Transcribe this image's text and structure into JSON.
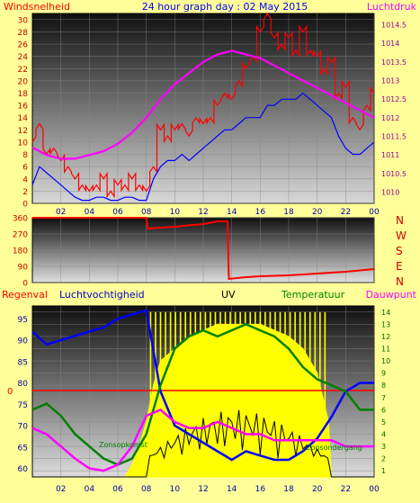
{
  "title": "24 hour graph day : 02 May 2015",
  "colors": {
    "page_bg": "#ffff99",
    "wind": "#ff0000",
    "pressure": "#ff00ff",
    "wind_avg": "#0000ff",
    "direction": "#ff0000",
    "humidity": "#0000cc",
    "uv": "#ffff00",
    "temp": "#008000",
    "dewpoint": "#ff00ff",
    "rain": "#ff0000",
    "axis_blue": "#0000aa",
    "compass": "#cc0000"
  },
  "chart_data": [
    {
      "type": "line",
      "panel": "top",
      "label_left": "Windsnelheid",
      "label_right": "Luchtdruk",
      "x_ticks": [
        "02",
        "04",
        "06",
        "08",
        "10",
        "12",
        "14",
        "16",
        "18",
        "20",
        "22",
        "00"
      ],
      "y_left_ticks": [
        "0",
        "2",
        "4",
        "6",
        "8",
        "10",
        "12",
        "14",
        "16",
        "18",
        "20",
        "22",
        "24",
        "26",
        "28",
        "30"
      ],
      "y_left_range": [
        0,
        31
      ],
      "y_right_ticks": [
        "1010",
        "1010.5",
        "1011",
        "1011.5",
        "1012",
        "1012.5",
        "1013",
        "1013.5",
        "1014",
        "1014.5"
      ],
      "y_right_range": [
        1009.7,
        1014.8
      ],
      "series": [
        {
          "role": "gust",
          "axis": "left",
          "x": [
            0,
            0.5,
            1,
            1.5,
            2,
            2.5,
            3,
            3.5,
            4,
            4.5,
            5,
            5.5,
            6,
            6.5,
            7,
            7.5,
            8,
            8.5,
            9,
            9.5,
            10,
            10.5,
            11,
            11.5,
            12,
            12.5,
            13,
            13.5,
            14,
            14.5,
            15,
            15.5,
            16,
            16.5,
            17,
            17.5,
            18,
            18.5,
            19,
            19.5,
            20,
            20.5,
            21,
            21.5,
            22,
            22.5,
            23,
            23.5,
            24
          ],
          "y": [
            10,
            13,
            8,
            9,
            7,
            6,
            4,
            3,
            2,
            3,
            4,
            2,
            3,
            3,
            4,
            3,
            2,
            6,
            12,
            11,
            12,
            13,
            11,
            14,
            13,
            14,
            16,
            18,
            17,
            20,
            22,
            24,
            28,
            31,
            27,
            26,
            27,
            25,
            28,
            25,
            24,
            22,
            23,
            18,
            19,
            14,
            12,
            16,
            18
          ]
        },
        {
          "role": "average",
          "axis": "left",
          "x": [
            0,
            0.5,
            1,
            1.5,
            2,
            2.5,
            3,
            3.5,
            4,
            4.5,
            5,
            5.5,
            6,
            6.5,
            7,
            7.5,
            8,
            8.5,
            9,
            9.5,
            10,
            10.5,
            11,
            11.5,
            12,
            12.5,
            13,
            13.5,
            14,
            14.5,
            15,
            15.5,
            16,
            16.5,
            17,
            17.5,
            18,
            18.5,
            19,
            19.5,
            20,
            20.5,
            21,
            21.5,
            22,
            22.5,
            23,
            23.5,
            24
          ],
          "y": [
            3,
            6,
            5,
            4,
            3,
            2,
            1,
            0.5,
            0.5,
            1,
            1,
            0.5,
            0.5,
            1,
            1,
            0.5,
            0.5,
            4,
            6,
            7,
            7,
            8,
            7,
            8,
            9,
            10,
            11,
            12,
            12,
            13,
            14,
            14,
            14,
            16,
            16,
            17,
            17,
            17,
            18,
            17,
            16,
            15,
            14,
            11,
            9,
            8,
            8,
            9,
            10
          ]
        },
        {
          "role": "pressure",
          "axis": "right",
          "x": [
            0,
            1,
            2,
            3,
            4,
            5,
            6,
            7,
            8,
            9,
            10,
            11,
            12,
            13,
            14,
            15,
            16,
            17,
            18,
            19,
            20,
            21,
            22,
            23,
            24
          ],
          "y": [
            1011.2,
            1011.0,
            1010.9,
            1010.9,
            1011.0,
            1011.1,
            1011.3,
            1011.6,
            1012.0,
            1012.5,
            1012.9,
            1013.2,
            1013.5,
            1013.7,
            1013.8,
            1013.7,
            1013.6,
            1013.4,
            1013.2,
            1013.0,
            1012.8,
            1012.6,
            1012.4,
            1012.2,
            1012.0
          ]
        }
      ]
    },
    {
      "type": "line",
      "panel": "direction",
      "y_left_ticks": [
        "0",
        "90",
        "180",
        "270",
        "360"
      ],
      "y_range": [
        0,
        360
      ],
      "compass": [
        "N",
        "W",
        "S",
        "E",
        "N"
      ],
      "series": [
        {
          "role": "wind_direction",
          "x": [
            0,
            2,
            4,
            6,
            8,
            8.1,
            9,
            10,
            11,
            12,
            13,
            13.7,
            13.8,
            15,
            16,
            18,
            20,
            22,
            24
          ],
          "y": [
            360,
            360,
            360,
            360,
            360,
            300,
            305,
            310,
            318,
            325,
            340,
            340,
            20,
            30,
            35,
            40,
            50,
            60,
            75
          ]
        }
      ]
    },
    {
      "type": "line",
      "panel": "bottom",
      "legend": [
        "Regenval",
        "Luchtvochtigheid",
        "UV",
        "Temperatuur",
        "Dauwpunt"
      ],
      "x_ticks": [
        "02",
        "04",
        "06",
        "08",
        "10",
        "12",
        "14",
        "16",
        "18",
        "20",
        "22",
        "00"
      ],
      "y_left_ticks": [
        "60",
        "65",
        "70",
        "75",
        "80",
        "85",
        "90",
        "95"
      ],
      "y_left_range": [
        58,
        98
      ],
      "rain_tick": "0",
      "y_right_ticks": [
        "1",
        "2",
        "3",
        "4",
        "5",
        "6",
        "7",
        "8",
        "9",
        "10",
        "11",
        "12",
        "13",
        "14"
      ],
      "y_right_range": [
        0.5,
        14.5
      ],
      "temp_ann": "Zonsopkomst",
      "temp_ann2": "Zonsondergang",
      "series": [
        {
          "role": "humidity",
          "axis": "left",
          "x": [
            0,
            1,
            2,
            3,
            4,
            5,
            6,
            7,
            8,
            9,
            10,
            11,
            12,
            13,
            14,
            15,
            16,
            17,
            18,
            19,
            20,
            21,
            22,
            23,
            24
          ],
          "y": [
            92,
            89,
            90,
            91,
            92,
            93,
            95,
            96,
            97,
            78,
            70,
            68,
            66,
            64,
            62,
            64,
            63,
            62,
            62,
            64,
            67,
            72,
            78,
            80,
            80
          ]
        },
        {
          "role": "temperature",
          "axis": "right",
          "x": [
            0,
            1,
            2,
            3,
            4,
            5,
            6,
            7,
            8,
            9,
            10,
            11,
            12,
            13,
            14,
            15,
            16,
            17,
            18,
            19,
            20,
            21,
            22,
            23,
            24
          ],
          "y": [
            6,
            6.5,
            5.5,
            4,
            3,
            2,
            1.5,
            2,
            4,
            8,
            11,
            12,
            12.5,
            12,
            12.5,
            13,
            12.5,
            12,
            11,
            9.5,
            8.5,
            8,
            7.5,
            6,
            6
          ]
        },
        {
          "role": "dewpoint",
          "axis": "right",
          "x": [
            0,
            1,
            2,
            3,
            4,
            5,
            6,
            7,
            8,
            9,
            10,
            11,
            12,
            13,
            14,
            15,
            16,
            17,
            18,
            19,
            20,
            21,
            22,
            23,
            24
          ],
          "y": [
            4.5,
            4,
            3,
            2,
            1.2,
            1,
            1.5,
            3,
            5.5,
            6,
            5,
            4.5,
            4.5,
            5,
            4.5,
            4,
            4,
            3.5,
            3.5,
            3.5,
            3.5,
            3.5,
            3,
            3,
            3
          ]
        },
        {
          "role": "uv",
          "axis": "right",
          "x": [
            0,
            5.8,
            6.5,
            7,
            7.5,
            8,
            8.5,
            9,
            10,
            11,
            12,
            13,
            14,
            15,
            16,
            17,
            18,
            19,
            20,
            20.8,
            21
          ],
          "y": [
            0,
            0,
            0.5,
            1.5,
            3,
            5,
            8,
            10,
            11,
            12,
            12.5,
            13,
            13,
            13,
            13,
            12.5,
            12,
            11,
            9,
            5,
            0
          ]
        }
      ]
    }
  ]
}
